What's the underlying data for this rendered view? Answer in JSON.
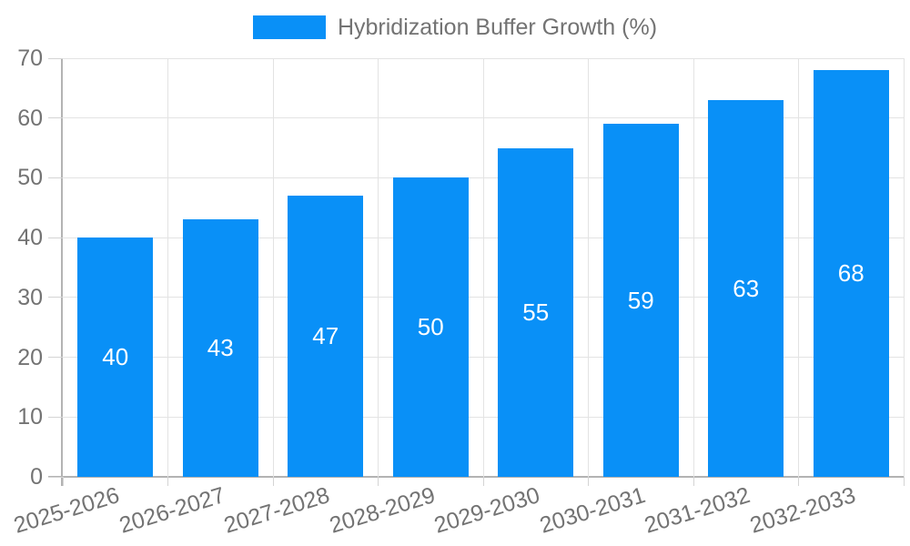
{
  "legend": {
    "label": "Hybridization Buffer Growth (%)"
  },
  "chart_data": {
    "type": "bar",
    "title": "Hybridization Buffer Growth (%)",
    "categories": [
      "2025-2026",
      "2026-2027",
      "2027-2028",
      "2028-2029",
      "2029-2030",
      "2030-2031",
      "2031-2032",
      "2032-2033"
    ],
    "values": [
      40,
      43,
      47,
      50,
      55,
      59,
      63,
      68
    ],
    "xlabel": "",
    "ylabel": "",
    "ylim": [
      0,
      70
    ],
    "yticks": [
      0,
      10,
      20,
      30,
      40,
      50,
      60,
      70
    ],
    "grid": true,
    "legend_position": "top",
    "bar_label_position": "inside-center",
    "colors": {
      "bar": "#0990f7",
      "grid": "#e3e3e3",
      "axis": "#b3b3b3",
      "tick": "#d4d4d4",
      "text": "#737373",
      "bar_label": "#ffffff",
      "background": "#ffffff"
    }
  }
}
